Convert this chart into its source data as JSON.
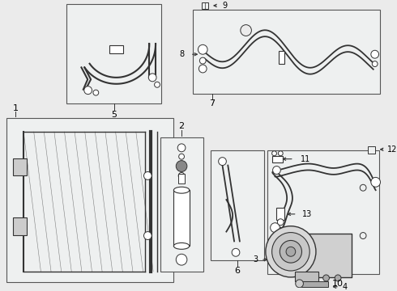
{
  "bg": "#ebebeb",
  "box_fc": "#eef0f0",
  "box_ec": "#555555",
  "lc": "#333333",
  "white": "#ffffff"
}
